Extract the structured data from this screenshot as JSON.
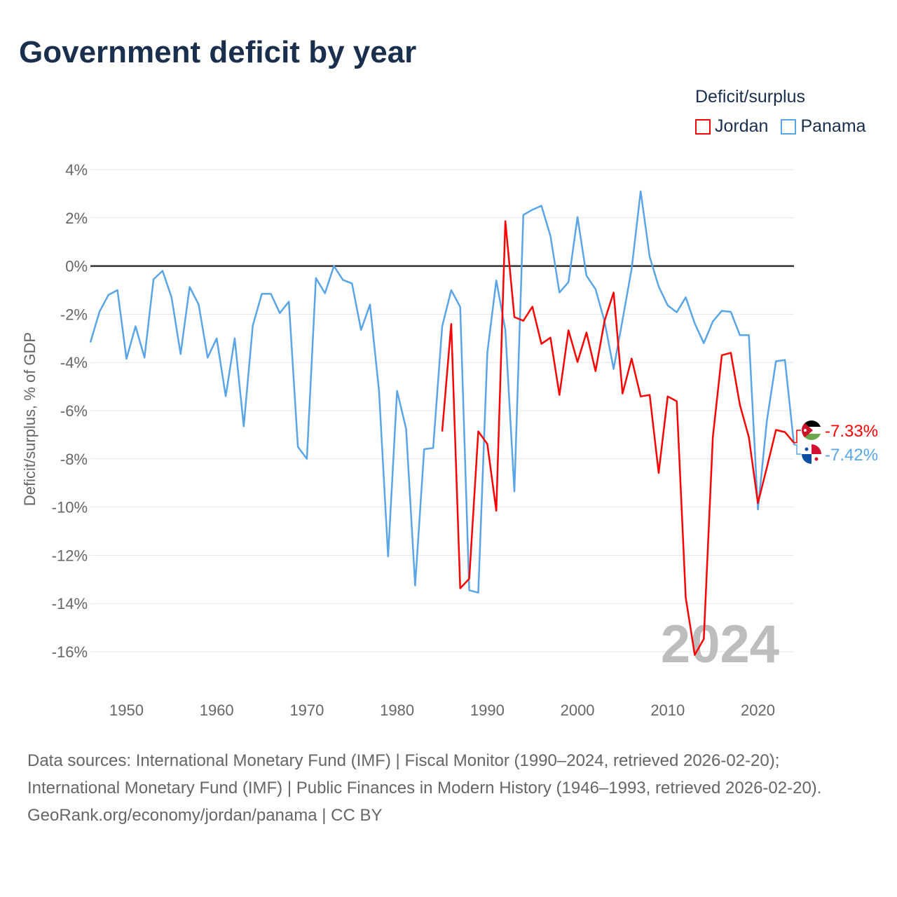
{
  "title": "Government deficit by year",
  "legend": {
    "title": "Deficit/surplus",
    "items": [
      {
        "name": "Jordan",
        "color": "#ff0000"
      },
      {
        "name": "Panama",
        "color": "#5aa5e8"
      }
    ]
  },
  "footer": {
    "sources": "Data sources: International Monetary Fund (IMF) | Fiscal Monitor (1990–2024, retrieved 2026-02-20); International Monetary Fund (IMF) | Public Finances in Modern History (1946–1993, retrieved 2026-02-20).",
    "credit": "GeoRank.org/economy/jordan/panama | CC BY"
  },
  "chart_data": {
    "type": "line",
    "title": "Government deficit by year",
    "ylabel": "Deficit/surplus, % of GDP",
    "xlabel": "",
    "xlim": [
      1946,
      2024
    ],
    "ylim": [
      -16,
      4
    ],
    "yticks": [
      4,
      2,
      0,
      -2,
      -4,
      -6,
      -8,
      -10,
      -12,
      -14,
      -16
    ],
    "ytick_labels": [
      "4%",
      "2%",
      "0%",
      "-2%",
      "-4%",
      "-6%",
      "-8%",
      "-10%",
      "-12%",
      "-14%",
      "-16%"
    ],
    "xticks": [
      1950,
      1960,
      1970,
      1980,
      1990,
      2000,
      2010,
      2020
    ],
    "xtick_labels": [
      "1950",
      "1960",
      "1970",
      "1980",
      "1990",
      "2000",
      "2010",
      "2020"
    ],
    "year_label": "2024",
    "grid": true,
    "legend_position": "top-right",
    "series": [
      {
        "name": "Jordan",
        "color": "#ff0000",
        "start": 1985,
        "end_label": "-7.33%",
        "values": [
          -6.86,
          -2.4,
          -13.37,
          -12.97,
          -6.86,
          -7.38,
          -10.15,
          1.86,
          -2.12,
          -2.27,
          -1.69,
          -3.23,
          -2.97,
          -5.35,
          -2.67,
          -3.98,
          -2.76,
          -4.36,
          -2.27,
          -1.1,
          -5.29,
          -3.84,
          -5.41,
          -5.35,
          -8.58,
          -5.41,
          -5.61,
          -13.75,
          -16.13,
          -15.47,
          -7.1,
          -3.7,
          -3.6,
          -5.76,
          -7.1,
          -9.83,
          -8.35,
          -6.8,
          -6.89,
          -7.33
        ]
      },
      {
        "name": "Panama",
        "color": "#5aa5e8",
        "start": 1946,
        "end_label": "-7.42%",
        "values": [
          -3.17,
          -1.9,
          -1.2,
          -1.0,
          -3.85,
          -2.5,
          -3.8,
          -0.55,
          -0.2,
          -1.3,
          -3.65,
          -0.87,
          -1.6,
          -3.8,
          -3.0,
          -5.4,
          -3.0,
          -6.65,
          -2.47,
          -1.15,
          -1.15,
          -1.95,
          -1.48,
          -7.5,
          -8.0,
          -0.5,
          -1.13,
          0,
          -0.58,
          -0.72,
          -2.65,
          -1.6,
          -5.2,
          -12.05,
          -5.18,
          -6.75,
          -13.25,
          -7.6,
          -7.55,
          -2.5,
          -1.0,
          -1.7,
          -13.45,
          -13.55,
          -3.6,
          -0.6,
          -2.65,
          -9.35,
          2.12,
          2.33,
          2.5,
          1.25,
          -1.1,
          -0.67,
          2.03,
          -0.4,
          -0.96,
          -2.3,
          -4.27,
          -2.23,
          -0.12,
          3.1,
          0.38,
          -0.85,
          -1.63,
          -1.92,
          -1.3,
          -2.38,
          -3.2,
          -2.3,
          -1.86,
          -1.9,
          -2.87,
          -2.87,
          -10.1,
          -6.4,
          -3.95,
          -3.9,
          -7.42
        ]
      }
    ]
  }
}
